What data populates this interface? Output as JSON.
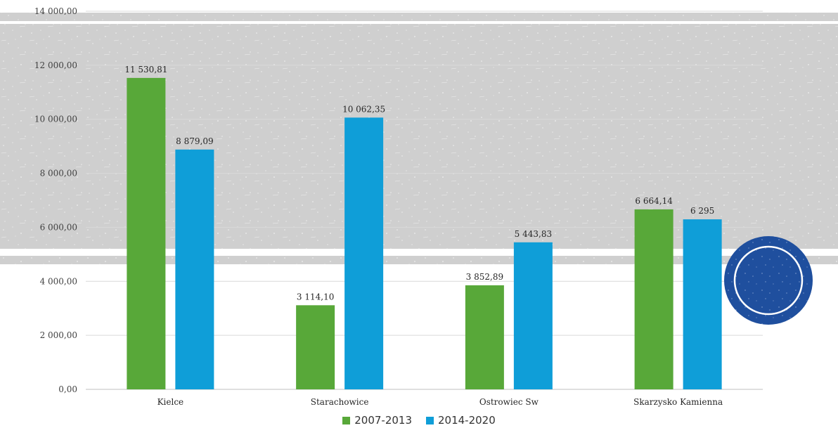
{
  "chart_data": {
    "type": "bar",
    "categories": [
      "Kielce",
      "Starachowice",
      "Ostrowiec Sw",
      "Skarzysko Kamienna"
    ],
    "series": [
      {
        "name": "2007-2013",
        "values": [
          11530.81,
          3114.1,
          3852.89,
          6664.14
        ],
        "labels": [
          "11 530,81",
          "3 114,10",
          "3 852,89",
          "6 664,14"
        ],
        "color": "#58a839"
      },
      {
        "name": "2014-2020",
        "values": [
          8879.09,
          10062.35,
          5443.83,
          6295
        ],
        "labels": [
          "8 879,09",
          "10 062,35",
          "5 443,83",
          "6 295"
        ],
        "color": "#0f9ed8"
      }
    ],
    "ylim": [
      0,
      14000
    ],
    "yticks": [
      0,
      2000,
      4000,
      6000,
      8000,
      10000,
      12000,
      14000
    ],
    "ytick_labels": [
      "0,00",
      "2 000,00",
      "4 000,00",
      "6 000,00",
      "8 000,00",
      "10 000,00",
      "12 000,00",
      "14 000,00"
    ],
    "grid": true,
    "legend_position": "bottom"
  }
}
